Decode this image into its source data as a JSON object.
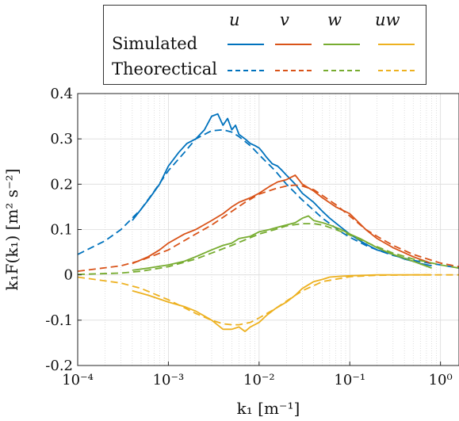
{
  "chart_data": {
    "type": "line",
    "xscale": "log",
    "xlim": [
      0.0001,
      1.6
    ],
    "ylim": [
      -0.2,
      0.4
    ],
    "xlabel": "k₁ [m⁻¹]",
    "ylabel": "k₁F(k₁) [m² s⁻²]",
    "xticks": [
      0.0001,
      0.001,
      0.01,
      0.1,
      1
    ],
    "xtick_labels": [
      "10⁻⁴",
      "10⁻³",
      "10⁻²",
      "10⁻¹",
      "10⁰"
    ],
    "yticks": [
      -0.2,
      -0.1,
      0,
      0.1,
      0.2,
      0.3,
      0.4
    ],
    "ytick_labels": [
      "-0.2",
      "-0.1",
      "0",
      "0.1",
      "0.2",
      "0.3",
      "0.4"
    ],
    "grid": true,
    "legend": {
      "placement": "top",
      "columns": [
        "u",
        "v",
        "w",
        "uw"
      ],
      "rows": [
        "Simulated",
        "Theorectical"
      ]
    },
    "series": [
      {
        "name": "Simulated",
        "component": "u",
        "style": "solid",
        "color": "#0072BD",
        "x": [
          0.0004,
          0.0006,
          0.0008,
          0.001,
          0.0013,
          0.0016,
          0.002,
          0.0025,
          0.003,
          0.0035,
          0.004,
          0.0045,
          0.005,
          0.0055,
          0.006,
          0.007,
          0.008,
          0.009,
          0.01,
          0.011,
          0.012,
          0.014,
          0.016,
          0.018,
          0.02,
          0.025,
          0.03,
          0.04,
          0.05,
          0.06,
          0.08,
          0.1,
          0.13,
          0.16,
          0.2,
          0.3,
          0.4,
          0.5,
          0.6,
          0.8
        ],
        "y": [
          0.12,
          0.165,
          0.2,
          0.24,
          0.27,
          0.29,
          0.3,
          0.32,
          0.35,
          0.355,
          0.33,
          0.345,
          0.32,
          0.33,
          0.31,
          0.3,
          0.29,
          0.285,
          0.28,
          0.27,
          0.26,
          0.245,
          0.24,
          0.23,
          0.22,
          0.2,
          0.18,
          0.16,
          0.14,
          0.125,
          0.105,
          0.09,
          0.075,
          0.065,
          0.055,
          0.045,
          0.035,
          0.03,
          0.025,
          0.02
        ]
      },
      {
        "name": "Theorectical",
        "component": "u",
        "style": "dashed",
        "color": "#0072BD",
        "x": [
          0.0001,
          0.0002,
          0.0003,
          0.0005,
          0.0007,
          0.001,
          0.0015,
          0.002,
          0.003,
          0.004,
          0.005,
          0.006,
          0.008,
          0.01,
          0.015,
          0.02,
          0.03,
          0.05,
          0.08,
          0.1,
          0.15,
          0.2,
          0.3,
          0.5,
          0.8,
          1.0,
          1.6
        ],
        "y": [
          0.045,
          0.075,
          0.1,
          0.145,
          0.185,
          0.23,
          0.27,
          0.3,
          0.318,
          0.32,
          0.315,
          0.305,
          0.285,
          0.265,
          0.23,
          0.2,
          0.165,
          0.125,
          0.095,
          0.083,
          0.065,
          0.055,
          0.043,
          0.032,
          0.025,
          0.022,
          0.015
        ]
      },
      {
        "name": "Simulated",
        "component": "v",
        "style": "solid",
        "color": "#D95319",
        "x": [
          0.0004,
          0.0006,
          0.0008,
          0.001,
          0.0015,
          0.002,
          0.003,
          0.004,
          0.005,
          0.006,
          0.008,
          0.01,
          0.013,
          0.016,
          0.02,
          0.025,
          0.03,
          0.04,
          0.05,
          0.07,
          0.1,
          0.15,
          0.2,
          0.3,
          0.5,
          0.8
        ],
        "y": [
          0.025,
          0.04,
          0.055,
          0.07,
          0.09,
          0.1,
          0.12,
          0.135,
          0.15,
          0.16,
          0.17,
          0.18,
          0.195,
          0.205,
          0.21,
          0.22,
          0.2,
          0.185,
          0.17,
          0.15,
          0.135,
          0.1,
          0.08,
          0.06,
          0.04,
          0.025
        ]
      },
      {
        "name": "Theorectical",
        "component": "v",
        "style": "dashed",
        "color": "#D95319",
        "x": [
          0.0001,
          0.0003,
          0.0005,
          0.001,
          0.002,
          0.003,
          0.005,
          0.007,
          0.01,
          0.015,
          0.02,
          0.025,
          0.03,
          0.04,
          0.05,
          0.07,
          0.1,
          0.15,
          0.2,
          0.3,
          0.5,
          1.0,
          1.6
        ],
        "y": [
          0.008,
          0.02,
          0.032,
          0.055,
          0.09,
          0.11,
          0.14,
          0.16,
          0.178,
          0.19,
          0.196,
          0.198,
          0.196,
          0.188,
          0.175,
          0.155,
          0.13,
          0.1,
          0.085,
          0.065,
          0.045,
          0.026,
          0.018
        ]
      },
      {
        "name": "Simulated",
        "component": "w",
        "style": "solid",
        "color": "#77AC30",
        "x": [
          0.0004,
          0.0006,
          0.001,
          0.0015,
          0.002,
          0.003,
          0.004,
          0.005,
          0.006,
          0.008,
          0.01,
          0.013,
          0.016,
          0.02,
          0.025,
          0.03,
          0.035,
          0.04,
          0.05,
          0.06,
          0.08,
          0.1,
          0.13,
          0.2,
          0.3,
          0.5,
          0.8
        ],
        "y": [
          0.01,
          0.015,
          0.022,
          0.03,
          0.04,
          0.055,
          0.065,
          0.07,
          0.08,
          0.085,
          0.095,
          0.1,
          0.105,
          0.11,
          0.115,
          0.125,
          0.13,
          0.12,
          0.115,
          0.11,
          0.1,
          0.09,
          0.08,
          0.06,
          0.045,
          0.03,
          0.015
        ]
      },
      {
        "name": "Theorectical",
        "component": "w",
        "style": "dashed",
        "color": "#77AC30",
        "x": [
          0.0001,
          0.0003,
          0.0005,
          0.001,
          0.002,
          0.003,
          0.005,
          0.008,
          0.01,
          0.015,
          0.02,
          0.03,
          0.04,
          0.05,
          0.07,
          0.1,
          0.15,
          0.2,
          0.3,
          0.5,
          1.0,
          1.6
        ],
        "y": [
          0.001,
          0.004,
          0.008,
          0.018,
          0.035,
          0.048,
          0.065,
          0.082,
          0.09,
          0.1,
          0.108,
          0.113,
          0.113,
          0.11,
          0.1,
          0.088,
          0.072,
          0.062,
          0.048,
          0.035,
          0.022,
          0.015
        ]
      },
      {
        "name": "Simulated",
        "component": "uw",
        "style": "solid",
        "color": "#EDB120",
        "x": [
          0.0004,
          0.0006,
          0.001,
          0.0015,
          0.002,
          0.003,
          0.004,
          0.005,
          0.006,
          0.007,
          0.008,
          0.01,
          0.012,
          0.015,
          0.02,
          0.025,
          0.03,
          0.04,
          0.05,
          0.06,
          0.08,
          0.1,
          0.15,
          0.2,
          0.3,
          0.5,
          0.8
        ],
        "y": [
          -0.035,
          -0.045,
          -0.06,
          -0.07,
          -0.08,
          -0.1,
          -0.12,
          -0.12,
          -0.115,
          -0.125,
          -0.115,
          -0.105,
          -0.09,
          -0.075,
          -0.06,
          -0.045,
          -0.03,
          -0.015,
          -0.01,
          -0.005,
          -0.003,
          -0.002,
          -0.001,
          0.0,
          0.0,
          0.0,
          0.0
        ]
      },
      {
        "name": "Theorectical",
        "component": "uw",
        "style": "dashed",
        "color": "#EDB120",
        "x": [
          0.0001,
          0.0003,
          0.0005,
          0.001,
          0.002,
          0.003,
          0.004,
          0.005,
          0.006,
          0.008,
          0.01,
          0.015,
          0.02,
          0.03,
          0.05,
          0.1,
          0.2,
          0.5,
          1.0,
          1.6
        ],
        "y": [
          -0.005,
          -0.018,
          -0.03,
          -0.055,
          -0.085,
          -0.1,
          -0.108,
          -0.11,
          -0.11,
          -0.105,
          -0.095,
          -0.075,
          -0.058,
          -0.035,
          -0.015,
          -0.004,
          -0.001,
          0.0,
          0.0,
          0.0
        ]
      }
    ]
  }
}
